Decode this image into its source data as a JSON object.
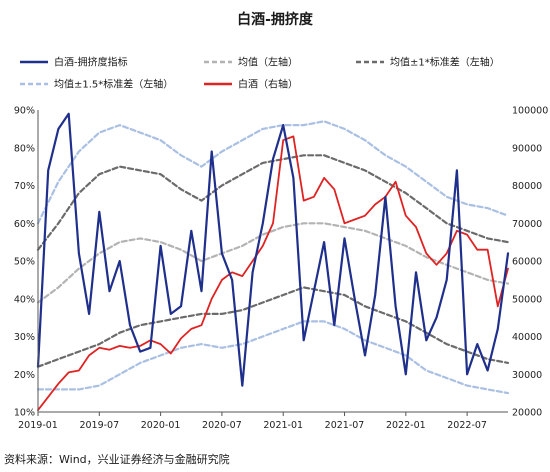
{
  "chart_data": {
    "type": "line",
    "title": "白酒-拥挤度",
    "source": "资料来源：Wind，兴业证券经济与金融研究院",
    "x_ticks": [
      "2019-01",
      "2019-07",
      "2020-01",
      "2020-07",
      "2021-01",
      "2021-07",
      "2022-01",
      "2022-07"
    ],
    "x_range": [
      "2019-01",
      "2022-11"
    ],
    "y_left": {
      "ticks": [
        "10%",
        "20%",
        "30%",
        "40%",
        "50%",
        "60%",
        "70%",
        "80%",
        "90%"
      ],
      "ylim": [
        10,
        90
      ],
      "unit": "%"
    },
    "y_right": {
      "ticks": [
        "20000",
        "30000",
        "40000",
        "50000",
        "60000",
        "70000",
        "80000",
        "90000",
        "100000"
      ],
      "ylim": [
        20000,
        100000
      ]
    },
    "grid": false,
    "legend_position": "top",
    "series": [
      {
        "name": "白酒-拥挤度指标",
        "axis": "left",
        "color": "#1f2f8c",
        "style": "solid",
        "points": [
          [
            "2019-01",
            22
          ],
          [
            "2019-02",
            74
          ],
          [
            "2019-03",
            85
          ],
          [
            "2019-04",
            89
          ],
          [
            "2019-05",
            52
          ],
          [
            "2019-06",
            36
          ],
          [
            "2019-07",
            63
          ],
          [
            "2019-08",
            42
          ],
          [
            "2019-09",
            50
          ],
          [
            "2019-10",
            33
          ],
          [
            "2019-11",
            26
          ],
          [
            "2019-12",
            27
          ],
          [
            "2020-01",
            54
          ],
          [
            "2020-02",
            36
          ],
          [
            "2020-03",
            38
          ],
          [
            "2020-04",
            58
          ],
          [
            "2020-05",
            42
          ],
          [
            "2020-06",
            79
          ],
          [
            "2020-07",
            52
          ],
          [
            "2020-08",
            45
          ],
          [
            "2020-09",
            17
          ],
          [
            "2020-10",
            47
          ],
          [
            "2020-11",
            60
          ],
          [
            "2020-12",
            77
          ],
          [
            "2021-01",
            86
          ],
          [
            "2021-02",
            72
          ],
          [
            "2021-03",
            29
          ],
          [
            "2021-04",
            42
          ],
          [
            "2021-05",
            55
          ],
          [
            "2021-06",
            33
          ],
          [
            "2021-07",
            56
          ],
          [
            "2021-08",
            40
          ],
          [
            "2021-09",
            25
          ],
          [
            "2021-10",
            41
          ],
          [
            "2021-11",
            67
          ],
          [
            "2021-12",
            38
          ],
          [
            "2022-01",
            20
          ],
          [
            "2022-02",
            47
          ],
          [
            "2022-03",
            29
          ],
          [
            "2022-04",
            35
          ],
          [
            "2022-05",
            45
          ],
          [
            "2022-06",
            74
          ],
          [
            "2022-07",
            20
          ],
          [
            "2022-08",
            28
          ],
          [
            "2022-09",
            21
          ],
          [
            "2022-10",
            32
          ],
          [
            "2022-11",
            52
          ]
        ]
      },
      {
        "name": "均值（左轴）",
        "axis": "left",
        "color": "#b3b3b3",
        "style": "dashed",
        "points": [
          [
            "2019-01",
            39
          ],
          [
            "2019-03",
            43
          ],
          [
            "2019-05",
            48
          ],
          [
            "2019-07",
            52
          ],
          [
            "2019-09",
            55
          ],
          [
            "2019-11",
            56
          ],
          [
            "2020-01",
            55
          ],
          [
            "2020-03",
            53
          ],
          [
            "2020-05",
            50
          ],
          [
            "2020-07",
            52
          ],
          [
            "2020-09",
            54
          ],
          [
            "2020-11",
            57
          ],
          [
            "2021-01",
            59
          ],
          [
            "2021-03",
            60
          ],
          [
            "2021-05",
            60
          ],
          [
            "2021-07",
            59
          ],
          [
            "2021-09",
            58
          ],
          [
            "2021-11",
            56
          ],
          [
            "2022-01",
            54
          ],
          [
            "2022-03",
            51
          ],
          [
            "2022-05",
            49
          ],
          [
            "2022-07",
            47
          ],
          [
            "2022-09",
            45
          ],
          [
            "2022-11",
            44
          ]
        ]
      },
      {
        "name": "均值±1*标准差（左轴）",
        "axis": "left",
        "color": "#6b6b6b",
        "style": "dashed",
        "upper": [
          [
            "2019-01",
            53
          ],
          [
            "2019-03",
            60
          ],
          [
            "2019-05",
            68
          ],
          [
            "2019-07",
            73
          ],
          [
            "2019-09",
            75
          ],
          [
            "2019-11",
            74
          ],
          [
            "2020-01",
            73
          ],
          [
            "2020-03",
            69
          ],
          [
            "2020-05",
            66
          ],
          [
            "2020-07",
            70
          ],
          [
            "2020-09",
            73
          ],
          [
            "2020-11",
            76
          ],
          [
            "2021-01",
            77
          ],
          [
            "2021-03",
            78
          ],
          [
            "2021-05",
            78
          ],
          [
            "2021-07",
            76
          ],
          [
            "2021-09",
            74
          ],
          [
            "2021-11",
            71
          ],
          [
            "2022-01",
            68
          ],
          [
            "2022-03",
            64
          ],
          [
            "2022-05",
            60
          ],
          [
            "2022-07",
            58
          ],
          [
            "2022-09",
            56
          ],
          [
            "2022-11",
            55
          ]
        ],
        "lower": [
          [
            "2019-01",
            22
          ],
          [
            "2019-03",
            24
          ],
          [
            "2019-05",
            26
          ],
          [
            "2019-07",
            28
          ],
          [
            "2019-09",
            31
          ],
          [
            "2019-11",
            33
          ],
          [
            "2020-01",
            34
          ],
          [
            "2020-03",
            35
          ],
          [
            "2020-05",
            36
          ],
          [
            "2020-07",
            36
          ],
          [
            "2020-09",
            37
          ],
          [
            "2020-11",
            39
          ],
          [
            "2021-01",
            41
          ],
          [
            "2021-03",
            43
          ],
          [
            "2021-05",
            42
          ],
          [
            "2021-07",
            41
          ],
          [
            "2021-09",
            38
          ],
          [
            "2021-11",
            36
          ],
          [
            "2022-01",
            34
          ],
          [
            "2022-03",
            31
          ],
          [
            "2022-05",
            28
          ],
          [
            "2022-07",
            26
          ],
          [
            "2022-09",
            24
          ],
          [
            "2022-11",
            23
          ]
        ]
      },
      {
        "name": "均值±1.5*标准差（左轴）",
        "axis": "left",
        "color": "#a9bfe3",
        "style": "dashed",
        "upper": [
          [
            "2019-01",
            60
          ],
          [
            "2019-03",
            71
          ],
          [
            "2019-05",
            79
          ],
          [
            "2019-07",
            84
          ],
          [
            "2019-09",
            86
          ],
          [
            "2019-11",
            84
          ],
          [
            "2020-01",
            82
          ],
          [
            "2020-03",
            78
          ],
          [
            "2020-05",
            75
          ],
          [
            "2020-07",
            79
          ],
          [
            "2020-09",
            82
          ],
          [
            "2020-11",
            85
          ],
          [
            "2021-01",
            86
          ],
          [
            "2021-03",
            86
          ],
          [
            "2021-05",
            87
          ],
          [
            "2021-07",
            85
          ],
          [
            "2021-09",
            82
          ],
          [
            "2021-11",
            78
          ],
          [
            "2022-01",
            75
          ],
          [
            "2022-03",
            71
          ],
          [
            "2022-05",
            67
          ],
          [
            "2022-07",
            65
          ],
          [
            "2022-09",
            64
          ],
          [
            "2022-11",
            62
          ]
        ],
        "lower": [
          [
            "2019-01",
            16
          ],
          [
            "2019-03",
            16
          ],
          [
            "2019-05",
            16
          ],
          [
            "2019-07",
            17
          ],
          [
            "2019-09",
            20
          ],
          [
            "2019-11",
            23
          ],
          [
            "2020-01",
            25
          ],
          [
            "2020-03",
            27
          ],
          [
            "2020-05",
            28
          ],
          [
            "2020-07",
            27
          ],
          [
            "2020-09",
            28
          ],
          [
            "2020-11",
            30
          ],
          [
            "2021-01",
            32
          ],
          [
            "2021-03",
            34
          ],
          [
            "2021-05",
            34
          ],
          [
            "2021-07",
            32
          ],
          [
            "2021-09",
            29
          ],
          [
            "2021-11",
            27
          ],
          [
            "2022-01",
            25
          ],
          [
            "2022-03",
            21
          ],
          [
            "2022-05",
            19
          ],
          [
            "2022-07",
            17
          ],
          [
            "2022-09",
            16
          ],
          [
            "2022-11",
            15
          ]
        ]
      },
      {
        "name": "白酒（右轴）",
        "axis": "right",
        "color": "#e02222",
        "style": "solid",
        "points": [
          [
            "2019-01",
            20500
          ],
          [
            "2019-02",
            24000
          ],
          [
            "2019-03",
            27500
          ],
          [
            "2019-04",
            30500
          ],
          [
            "2019-05",
            31000
          ],
          [
            "2019-06",
            35000
          ],
          [
            "2019-07",
            37000
          ],
          [
            "2019-08",
            36500
          ],
          [
            "2019-09",
            37500
          ],
          [
            "2019-10",
            37000
          ],
          [
            "2019-11",
            37500
          ],
          [
            "2019-12",
            39000
          ],
          [
            "2020-01",
            38000
          ],
          [
            "2020-02",
            35500
          ],
          [
            "2020-03",
            39500
          ],
          [
            "2020-04",
            42000
          ],
          [
            "2020-05",
            43000
          ],
          [
            "2020-06",
            50000
          ],
          [
            "2020-07",
            55000
          ],
          [
            "2020-08",
            57000
          ],
          [
            "2020-09",
            56000
          ],
          [
            "2020-10",
            60000
          ],
          [
            "2020-11",
            64000
          ],
          [
            "2020-12",
            70000
          ],
          [
            "2021-01",
            92000
          ],
          [
            "2021-02",
            93000
          ],
          [
            "2021-03",
            76000
          ],
          [
            "2021-04",
            77000
          ],
          [
            "2021-05",
            82000
          ],
          [
            "2021-06",
            79000
          ],
          [
            "2021-07",
            70000
          ],
          [
            "2021-08",
            71000
          ],
          [
            "2021-09",
            72000
          ],
          [
            "2021-10",
            75000
          ],
          [
            "2021-11",
            77000
          ],
          [
            "2021-12",
            81000
          ],
          [
            "2022-01",
            72000
          ],
          [
            "2022-02",
            69000
          ],
          [
            "2022-03",
            62000
          ],
          [
            "2022-04",
            59000
          ],
          [
            "2022-05",
            62000
          ],
          [
            "2022-06",
            68000
          ],
          [
            "2022-07",
            67000
          ],
          [
            "2022-08",
            63000
          ],
          [
            "2022-09",
            63000
          ],
          [
            "2022-10",
            48000
          ],
          [
            "2022-11",
            58000
          ]
        ]
      }
    ]
  }
}
